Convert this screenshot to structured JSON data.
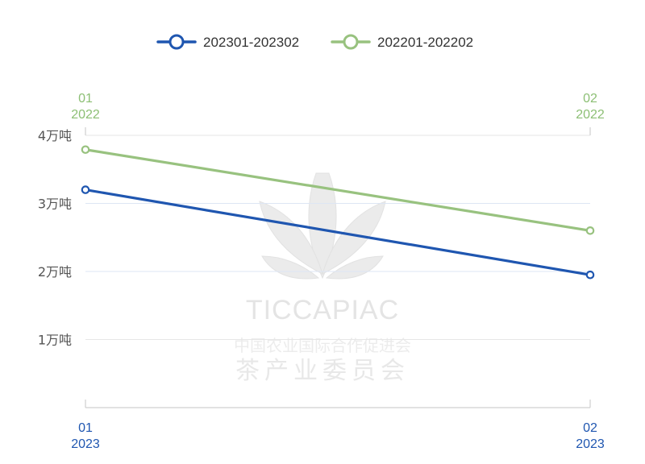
{
  "chart_data": {
    "type": "line",
    "y_unit_suffix": "万吨",
    "ylim": [
      0,
      4
    ],
    "yticks": [
      1,
      2,
      3,
      4
    ],
    "ytick_labels": [
      "1万吨",
      "2万吨",
      "3万吨",
      "4万吨"
    ],
    "top_axis": {
      "categories": [
        [
          "01",
          "2022"
        ],
        [
          "02",
          "2022"
        ]
      ],
      "color": "#8cbf74"
    },
    "bottom_axis": {
      "categories": [
        [
          "01",
          "2023"
        ],
        [
          "02",
          "2023"
        ]
      ],
      "color": "#1f56b0"
    },
    "series": [
      {
        "name": "202301-202302",
        "color": "#1f56b0",
        "values": [
          3.2,
          1.95
        ]
      },
      {
        "name": "202201-202202",
        "color": "#98c27f",
        "values": [
          3.79,
          2.6
        ]
      }
    ],
    "legend_position": "top-center",
    "grid": true
  },
  "watermark": {
    "brand": "TICCAPIAC",
    "line1": "中国农业国际合作促进会",
    "line2": "茶产业委员会"
  }
}
